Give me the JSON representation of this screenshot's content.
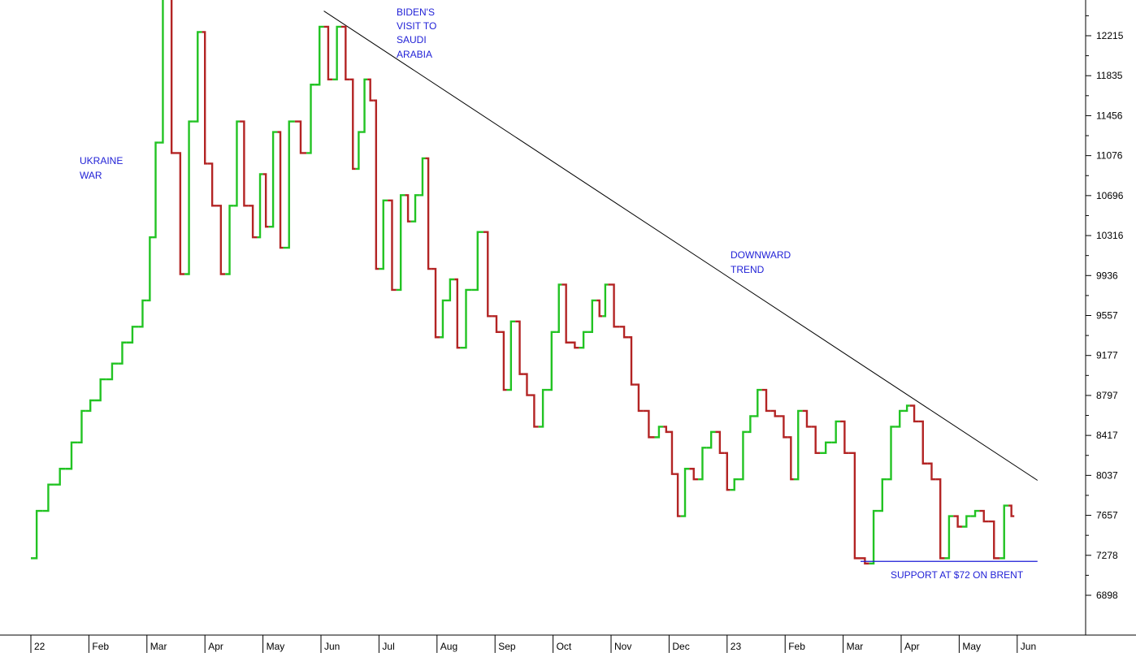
{
  "chart_data": {
    "type": "line",
    "style": "price-step-chart",
    "colors": {
      "up": "#22c323",
      "down": "#b32424",
      "trendline": "#000000",
      "support": "#1a1ad6",
      "annotation": "#1f1fd6",
      "axis": "#000000"
    },
    "y_ticks": [
      "12215",
      "11835",
      "11456",
      "11076",
      "10696",
      "10316",
      "9936",
      "9557",
      "9177",
      "8797",
      "8417",
      "8037",
      "7657",
      "7278",
      "6898"
    ],
    "x_tick_labels": [
      "22",
      "Feb",
      "Mar",
      "Apr",
      "May",
      "Jun",
      "Jul",
      "Aug",
      "Sep",
      "Oct",
      "Nov",
      "Dec",
      "23",
      "Feb",
      "Mar",
      "Apr",
      "May",
      "Jun"
    ],
    "ylim": [
      6600,
      12600
    ],
    "grid": false,
    "annotations": {
      "ukraine": [
        "UKRAINE",
        "WAR"
      ],
      "biden": [
        "BIDEN'S",
        "VISIT TO",
        "SAUDI",
        "ARABIA"
      ],
      "downward": [
        "DOWNWARD",
        "TREND"
      ],
      "support": "SUPPORT AT $72 ON BRENT"
    },
    "trendline": {
      "from": {
        "month": 5.05,
        "value": 12450
      },
      "to": {
        "month": 17.35,
        "value": 7990
      }
    },
    "support_line": {
      "from_month": 14.3,
      "to_month": 17.35,
      "value": 7220
    },
    "series": [
      {
        "values": [
          [
            0.0,
            7250
          ],
          [
            0.2,
            7700
          ],
          [
            0.4,
            7950
          ],
          [
            0.6,
            8100
          ],
          [
            0.8,
            8350
          ],
          [
            0.95,
            8650
          ],
          [
            1.1,
            8750
          ],
          [
            1.3,
            8950
          ],
          [
            1.5,
            9100
          ],
          [
            1.65,
            9300
          ],
          [
            1.85,
            9450
          ],
          [
            2.0,
            9700
          ],
          [
            2.1,
            10300
          ],
          [
            2.2,
            11200
          ],
          [
            2.35,
            12800
          ],
          [
            2.5,
            11100
          ],
          [
            2.65,
            9950
          ],
          [
            2.8,
            11400
          ],
          [
            2.95,
            12250
          ],
          [
            3.05,
            11000
          ],
          [
            3.2,
            10600
          ],
          [
            3.35,
            9950
          ],
          [
            3.5,
            10600
          ],
          [
            3.6,
            11400
          ],
          [
            3.75,
            10600
          ],
          [
            3.9,
            10300
          ],
          [
            4.0,
            10900
          ],
          [
            4.1,
            10400
          ],
          [
            4.25,
            11300
          ],
          [
            4.35,
            10200
          ],
          [
            4.55,
            11400
          ],
          [
            4.75,
            11100
          ],
          [
            4.9,
            11750
          ],
          [
            5.05,
            12300
          ],
          [
            5.2,
            11800
          ],
          [
            5.35,
            12300
          ],
          [
            5.5,
            11800
          ],
          [
            5.6,
            10950
          ],
          [
            5.7,
            11300
          ],
          [
            5.8,
            11800
          ],
          [
            5.9,
            11600
          ],
          [
            6.0,
            10000
          ],
          [
            6.15,
            10650
          ],
          [
            6.3,
            9800
          ],
          [
            6.45,
            10700
          ],
          [
            6.55,
            10450
          ],
          [
            6.7,
            10700
          ],
          [
            6.8,
            11050
          ],
          [
            6.9,
            10000
          ],
          [
            7.05,
            9350
          ],
          [
            7.15,
            9700
          ],
          [
            7.3,
            9900
          ],
          [
            7.4,
            9250
          ],
          [
            7.6,
            9800
          ],
          [
            7.8,
            10350
          ],
          [
            7.95,
            9550
          ],
          [
            8.1,
            9400
          ],
          [
            8.2,
            8850
          ],
          [
            8.35,
            9500
          ],
          [
            8.5,
            9000
          ],
          [
            8.6,
            8800
          ],
          [
            8.75,
            8500
          ],
          [
            8.9,
            8850
          ],
          [
            9.05,
            9400
          ],
          [
            9.15,
            9850
          ],
          [
            9.3,
            9300
          ],
          [
            9.45,
            9250
          ],
          [
            9.6,
            9400
          ],
          [
            9.75,
            9700
          ],
          [
            9.85,
            9550
          ],
          [
            9.95,
            9850
          ],
          [
            10.15,
            9450
          ],
          [
            10.3,
            9350
          ],
          [
            10.4,
            8900
          ],
          [
            10.55,
            8650
          ],
          [
            10.75,
            8400
          ],
          [
            10.9,
            8500
          ],
          [
            11.0,
            8450
          ],
          [
            11.1,
            8050
          ],
          [
            11.2,
            7650
          ],
          [
            11.35,
            8100
          ],
          [
            11.5,
            8000
          ],
          [
            11.65,
            8300
          ],
          [
            11.8,
            8450
          ],
          [
            11.95,
            8250
          ],
          [
            12.05,
            7900
          ],
          [
            12.2,
            8000
          ],
          [
            12.35,
            8450
          ],
          [
            12.45,
            8600
          ],
          [
            12.6,
            8850
          ],
          [
            12.75,
            8650
          ],
          [
            12.9,
            8600
          ],
          [
            13.05,
            8400
          ],
          [
            13.15,
            8000
          ],
          [
            13.3,
            8650
          ],
          [
            13.45,
            8500
          ],
          [
            13.6,
            8250
          ],
          [
            13.8,
            8350
          ],
          [
            13.95,
            8550
          ],
          [
            14.1,
            8250
          ],
          [
            14.3,
            7250
          ],
          [
            14.45,
            7200
          ],
          [
            14.6,
            7700
          ],
          [
            14.75,
            8000
          ],
          [
            14.9,
            8500
          ],
          [
            15.05,
            8650
          ],
          [
            15.15,
            8700
          ],
          [
            15.3,
            8550
          ],
          [
            15.45,
            8150
          ],
          [
            15.6,
            8000
          ],
          [
            15.75,
            7250
          ],
          [
            15.9,
            7650
          ],
          [
            16.05,
            7550
          ],
          [
            16.2,
            7650
          ],
          [
            16.35,
            7700
          ],
          [
            16.5,
            7600
          ],
          [
            16.7,
            7250
          ],
          [
            16.85,
            7750
          ],
          [
            16.95,
            7650
          ]
        ]
      }
    ]
  }
}
